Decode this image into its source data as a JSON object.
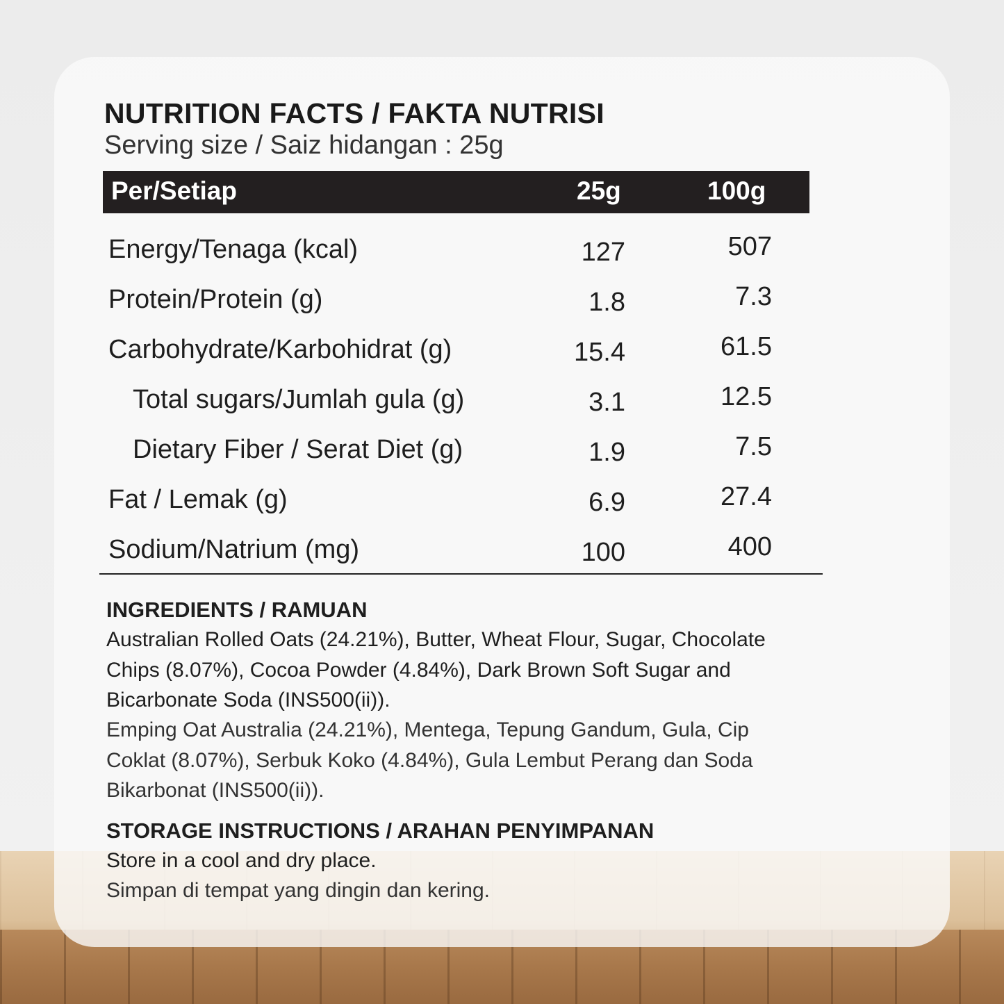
{
  "title": "NUTRITION FACTS / FAKTA NUTRISI",
  "serving": "Serving size / Saiz hidangan : 25g",
  "table": {
    "header": {
      "label": "Per/Setiap",
      "col1": "25g",
      "col2": "100g"
    },
    "rows": [
      {
        "label": "Energy/Tenaga (kcal)",
        "v1": "127",
        "v2": "507"
      },
      {
        "label": "Protein/Protein (g)",
        "v1": "1.8",
        "v2": "7.3"
      },
      {
        "label": "Carbohydrate/Karbohidrat (g)",
        "v1": "15.4",
        "v2": "61.5"
      },
      {
        "label": "Total sugars/Jumlah gula (g)",
        "v1": "3.1",
        "v2": "12.5"
      },
      {
        "label": "Dietary Fiber / Serat Diet (g)",
        "v1": "1.9",
        "v2": "7.5"
      },
      {
        "label": "Fat / Lemak (g)",
        "v1": "6.9",
        "v2": "27.4"
      },
      {
        "label": "Sodium/Natrium (mg)",
        "v1": "100",
        "v2": "400"
      }
    ]
  },
  "ingredients": {
    "heading": "INGREDIENTS / RAMUAN",
    "english": "Australian Rolled Oats (24.21%), Butter, Wheat Flour, Sugar, Chocolate Chips (8.07%), Cocoa Powder (4.84%), Dark Brown Soft Sugar and Bicarbonate Soda (INS500(ii)).",
    "malay": "Emping Oat Australia (24.21%), Mentega, Tepung Gandum, Gula, Cip Coklat (8.07%), Serbuk Koko (4.84%), Gula Lembut Perang dan Soda Bikarbonat (INS500(ii))."
  },
  "storage": {
    "heading": "STORAGE INSTRUCTIONS / ARAHAN PENYIMPANAN",
    "english": "Store in a cool and dry place.",
    "malay": "Simpan di tempat yang dingin dan kering."
  }
}
